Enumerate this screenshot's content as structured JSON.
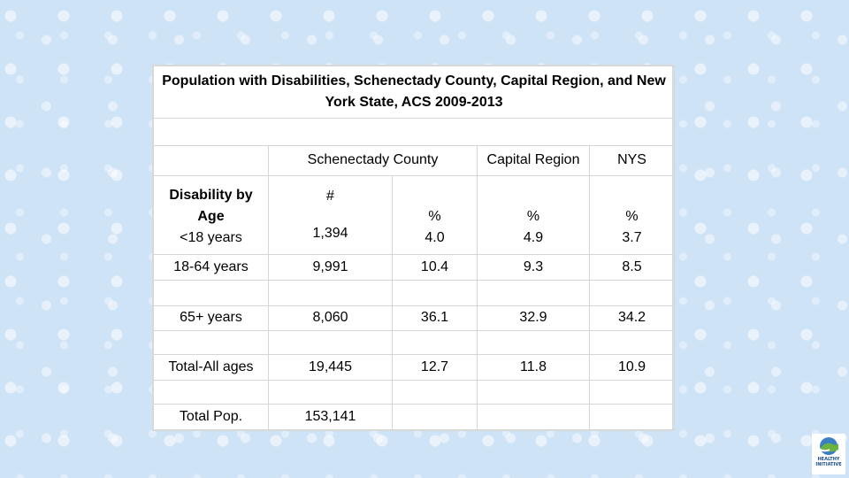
{
  "title": "Population with Disabilities, Schenectady County, Capital Region, and New York State,  ACS 2009-2013",
  "header": {
    "group_schenectady": "Schenectady County",
    "group_capital": "Capital Region",
    "group_nys": "NYS",
    "row_label_line1": "Disability by",
    "row_label_line2": "Age",
    "col_count": "#",
    "col_pct": "%"
  },
  "rows": [
    {
      "label": "<18 years",
      "count": "1,394",
      "sch_pct": "4.0",
      "cap_pct": "4.9",
      "nys_pct": "3.7"
    },
    {
      "label": "18-64 years",
      "count": "9,991",
      "sch_pct": "10.4",
      "cap_pct": "9.3",
      "nys_pct": "8.5"
    },
    {
      "label": "65+ years",
      "count": "8,060",
      "sch_pct": "36.1",
      "cap_pct": "32.9",
      "nys_pct": "34.2"
    },
    {
      "label": "Total-All ages",
      "count": "19,445",
      "sch_pct": "12.7",
      "cap_pct": "11.8",
      "nys_pct": "10.9"
    },
    {
      "label": "Total Pop.",
      "count": "153,141",
      "sch_pct": "",
      "cap_pct": "",
      "nys_pct": ""
    }
  ],
  "logo": {
    "icon": "hands-globe-icon",
    "line1": "HEALTHY",
    "line2": "INITIATIVE"
  }
}
